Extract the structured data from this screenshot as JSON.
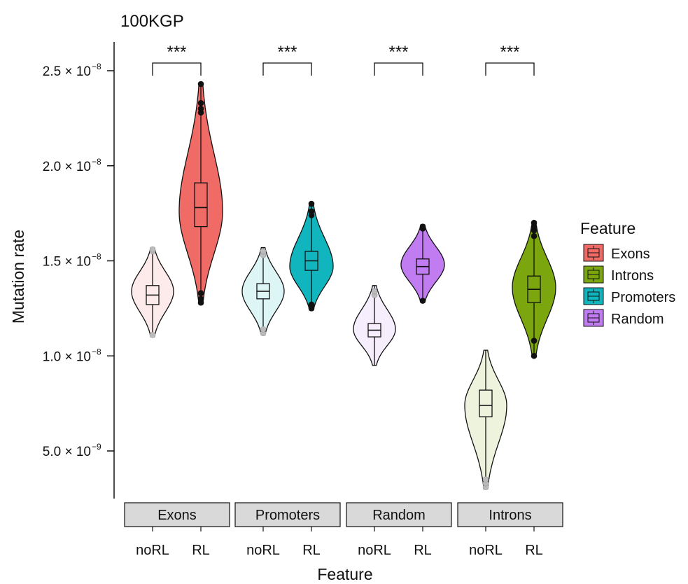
{
  "chart_data": {
    "type": "violin",
    "title": "100KGP",
    "xlabel": "Feature",
    "ylabel": "Mutation rate",
    "ylim": [
      2.4e-09,
      2.64e-08
    ],
    "yticks": [
      {
        "value": 2.5e-08,
        "mantissa": "2.5 × 10",
        "exp": "−8"
      },
      {
        "value": 2e-08,
        "mantissa": "2.0 × 10",
        "exp": "−8"
      },
      {
        "value": 1.5e-08,
        "mantissa": "1.5 × 10",
        "exp": "−8"
      },
      {
        "value": 1e-08,
        "mantissa": "1.0 × 10",
        "exp": "−8"
      },
      {
        "value": 5e-09,
        "mantissa": "5.0 × 10",
        "exp": "−9"
      }
    ],
    "legend": {
      "title": "Feature",
      "position": "right",
      "entries": [
        {
          "label": "Exons",
          "color": "#f06b66"
        },
        {
          "label": "Introns",
          "color": "#7ca60e"
        },
        {
          "label": "Promoters",
          "color": "#11b5bd"
        },
        {
          "label": "Random",
          "color": "#c07cf0"
        }
      ]
    },
    "panels": [
      {
        "label": "Exons",
        "color": "#f06b66",
        "significance": "***",
        "groups": [
          {
            "name": "noRL",
            "min": 1.1e-08,
            "max": 1.57e-08,
            "q1": 1.27e-08,
            "median": 1.32e-08,
            "q3": 1.37e-08,
            "mode": 1.34e-08,
            "outliers": [
              1.11e-08,
              1.55e-08,
              1.56e-08
            ]
          },
          {
            "name": "RL",
            "min": 1.27e-08,
            "max": 2.43e-08,
            "q1": 1.68e-08,
            "median": 1.78e-08,
            "q3": 1.91e-08,
            "mode": 1.76e-08,
            "outliers": [
              1.28e-08,
              1.3e-08,
              1.33e-08,
              2.28e-08,
              2.3e-08,
              2.33e-08,
              2.43e-08
            ]
          }
        ]
      },
      {
        "label": "Promoters",
        "color": "#11b5bd",
        "significance": "***",
        "groups": [
          {
            "name": "noRL",
            "min": 1.11e-08,
            "max": 1.57e-08,
            "q1": 1.3e-08,
            "median": 1.34e-08,
            "q3": 1.38e-08,
            "mode": 1.34e-08,
            "outliers": [
              1.12e-08,
              1.14e-08,
              1.53e-08,
              1.55e-08
            ]
          },
          {
            "name": "RL",
            "min": 1.24e-08,
            "max": 1.8e-08,
            "q1": 1.45e-08,
            "median": 1.5e-08,
            "q3": 1.55e-08,
            "mode": 1.47e-08,
            "outliers": [
              1.25e-08,
              1.27e-08,
              1.74e-08,
              1.76e-08,
              1.8e-08
            ]
          }
        ]
      },
      {
        "label": "Random",
        "color": "#c07cf0",
        "significance": "***",
        "groups": [
          {
            "name": "noRL",
            "min": 9.5e-09,
            "max": 1.37e-08,
            "q1": 1.1e-08,
            "median": 1.135e-08,
            "q3": 1.17e-08,
            "mode": 1.14e-08,
            "outliers": [
              1.32e-08,
              1.34e-08
            ]
          },
          {
            "name": "RL",
            "min": 1.28e-08,
            "max": 1.69e-08,
            "q1": 1.43e-08,
            "median": 1.47e-08,
            "q3": 1.51e-08,
            "mode": 1.48e-08,
            "outliers": [
              1.29e-08,
              1.67e-08,
              1.68e-08
            ]
          }
        ]
      },
      {
        "label": "Introns",
        "color": "#7ca60e",
        "significance": "***",
        "groups": [
          {
            "name": "noRL",
            "min": 3e-09,
            "max": 1.03e-08,
            "q1": 6.8e-09,
            "median": 7.4e-09,
            "q3": 8.2e-09,
            "mode": 7.4e-09,
            "outliers": [
              3.1e-09,
              3.3e-09,
              3.5e-09
            ]
          },
          {
            "name": "RL",
            "min": 1e-08,
            "max": 1.7e-08,
            "q1": 1.28e-08,
            "median": 1.35e-08,
            "q3": 1.42e-08,
            "mode": 1.36e-08,
            "outliers": [
              1e-08,
              1.08e-08,
              1.63e-08,
              1.66e-08,
              1.68e-08,
              1.7e-08
            ]
          }
        ]
      }
    ]
  }
}
